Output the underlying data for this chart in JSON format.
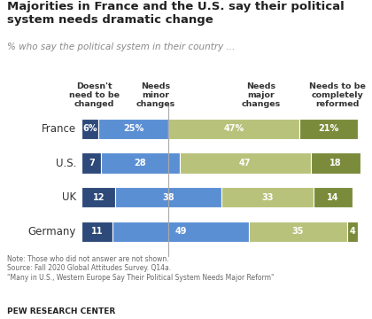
{
  "title": "Majorities in France and the U.S. say their political\nsystem needs dramatic change",
  "subtitle": "% who say the political system in their country ...",
  "countries": [
    "France",
    "U.S.",
    "UK",
    "Germany"
  ],
  "categories": [
    "Doesn't\nneed to be\nchanged",
    "Needs\nminor\nchanges",
    "Needs\nmajor\nchanges",
    "Needs to be\ncompletely\nreformed"
  ],
  "values": [
    [
      6,
      25,
      47,
      21
    ],
    [
      7,
      28,
      47,
      18
    ],
    [
      12,
      38,
      33,
      14
    ],
    [
      11,
      49,
      35,
      4
    ]
  ],
  "colors": [
    "#2E4A7A",
    "#5B8FD4",
    "#B8C27A",
    "#7A8C3C"
  ],
  "note": "Note: Those who did not answer are not shown.\nSource: Fall 2020 Global Attitudes Survey. Q14a.\n\"Many in U.S., Western Europe Say Their Political System Needs Major Reform\"",
  "footer": "PEW RESEARCH CENTER",
  "bg_color": "#ffffff"
}
